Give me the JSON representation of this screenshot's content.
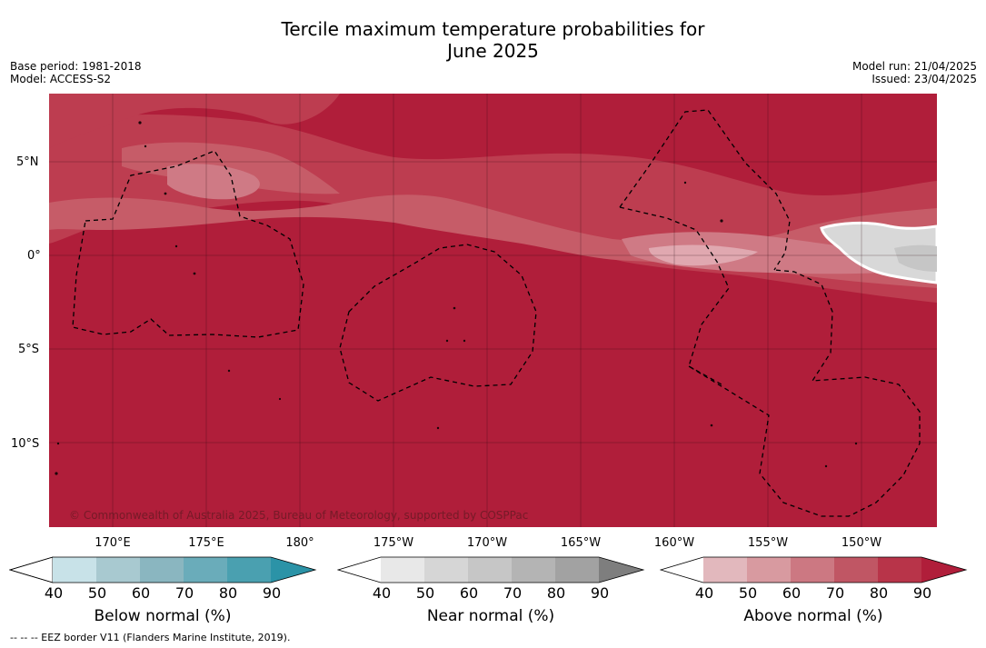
{
  "title_line1": "Tercile maximum temperature probabilities for",
  "title_line2": "June 2025",
  "meta_left": {
    "base_period": "Base period: 1981-2018",
    "model": "Model: ACCESS-S2"
  },
  "meta_right": {
    "model_run": "Model run: 21/04/2025",
    "issued": "Issued: 23/04/2025"
  },
  "lat_labels": [
    "5°N",
    "0°",
    "5°S",
    "10°S"
  ],
  "lon_labels": [
    "170°E",
    "175°E",
    "180°",
    "175°W",
    "170°W",
    "165°W",
    "160°W",
    "155°W",
    "150°W"
  ],
  "copyright": "© Commonwealth of Australia 2025, Bureau of Meteorology, supported by COSPPac",
  "colorbars": [
    {
      "title": "Below normal (%)",
      "ticks": [
        "40",
        "50",
        "60",
        "70",
        "80",
        "90"
      ],
      "colors": [
        "#ffffff",
        "#c8e2e8",
        "#a8c9d0",
        "#8ab6c0",
        "#6aacba",
        "#4aa0b0",
        "#2b93a7"
      ]
    },
    {
      "title": "Near normal (%)",
      "ticks": [
        "40",
        "50",
        "60",
        "70",
        "80",
        "90"
      ],
      "colors": [
        "#ffffff",
        "#e8e8e8",
        "#d6d6d6",
        "#c6c6c6",
        "#b4b4b4",
        "#a2a2a2",
        "#7e7e7e"
      ]
    },
    {
      "title": "Above normal (%)",
      "ticks": [
        "40",
        "50",
        "60",
        "70",
        "80",
        "90"
      ],
      "colors": [
        "#ffffff",
        "#e2b8bd",
        "#d89aa0",
        "#cc7882",
        "#c05664",
        "#b83449",
        "#b01e3a"
      ]
    }
  ],
  "footer": "--  --  -- EEZ border V11 (Flanders Marine Institute, 2019).",
  "map_colors": {
    "p90": "#b01e3a",
    "p80": "#bd3d50",
    "p70": "#c65c68",
    "p60": "#cf7a85",
    "near_light": "#d8d8d8",
    "near_mid": "#c6c6c6"
  }
}
